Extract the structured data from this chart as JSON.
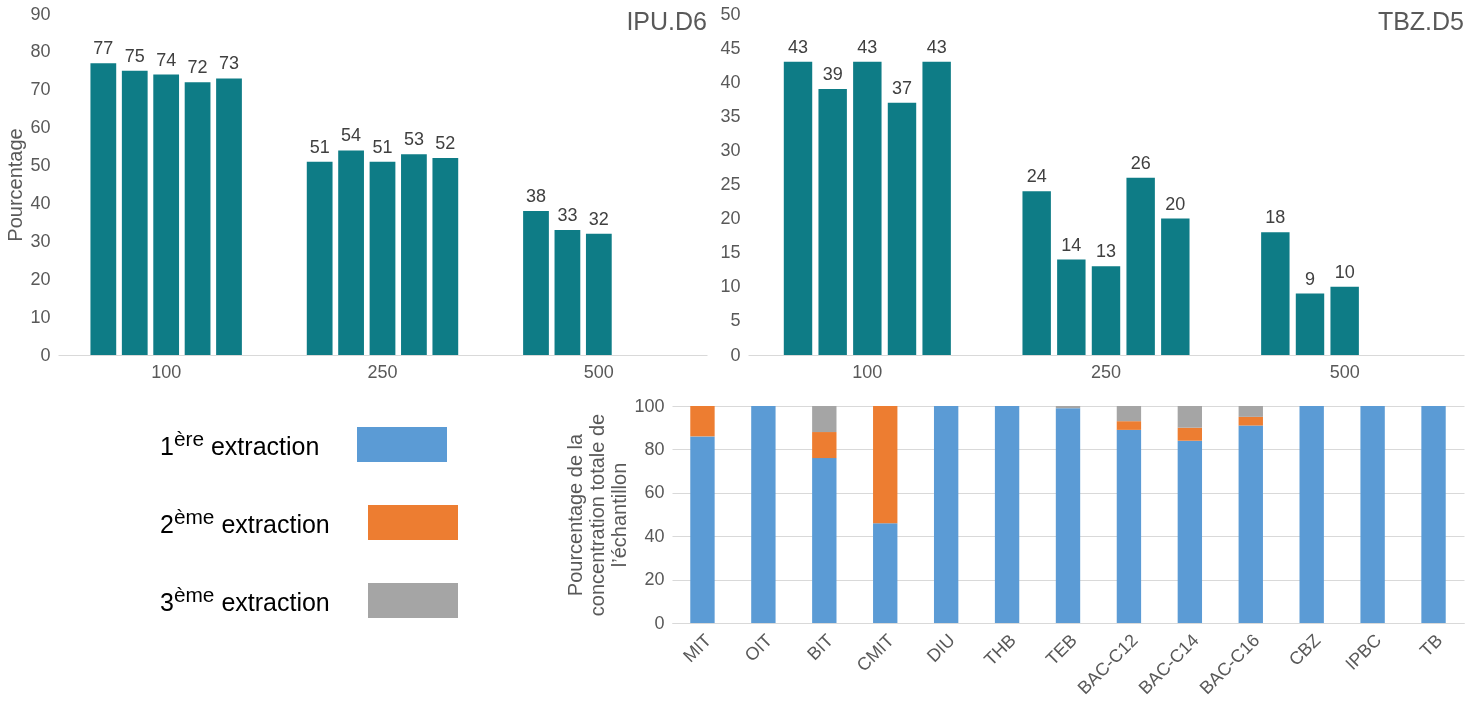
{
  "chart_data": [
    {
      "type": "bar",
      "title": "IPU.D6",
      "ylabel": "Pourcentage",
      "categories": [
        "100",
        "250",
        "500"
      ],
      "series": [
        {
          "color": "#0e7c86",
          "values": [
            77,
            51,
            38
          ]
        },
        {
          "color": "#0e7c86",
          "values": [
            75,
            54,
            33
          ]
        },
        {
          "color": "#0e7c86",
          "values": [
            74,
            51,
            32
          ]
        },
        {
          "color": "#0e7c86",
          "values": [
            72,
            53,
            null
          ]
        },
        {
          "color": "#0e7c86",
          "values": [
            73,
            52,
            null
          ]
        }
      ],
      "ylim": [
        0,
        90
      ],
      "yticks": [
        0,
        10,
        20,
        30,
        40,
        50,
        60,
        70,
        80,
        90
      ],
      "data_labels": true
    },
    {
      "type": "bar",
      "title": "TBZ.D5",
      "categories": [
        "100",
        "250",
        "500"
      ],
      "series": [
        {
          "color": "#0e7c86",
          "values": [
            43,
            24,
            18
          ]
        },
        {
          "color": "#0e7c86",
          "values": [
            39,
            14,
            9
          ]
        },
        {
          "color": "#0e7c86",
          "values": [
            43,
            13,
            10
          ]
        },
        {
          "color": "#0e7c86",
          "values": [
            37,
            26,
            null
          ]
        },
        {
          "color": "#0e7c86",
          "values": [
            43,
            20,
            null
          ]
        }
      ],
      "ylim": [
        0,
        50
      ],
      "yticks": [
        0,
        5,
        10,
        15,
        20,
        25,
        30,
        35,
        40,
        45,
        50
      ],
      "data_labels": true
    },
    {
      "type": "bar",
      "stacked": true,
      "ylabel": "Pourcentage de la concentration totale de l’échantillon",
      "categories": [
        "MIT",
        "OIT",
        "BIT",
        "CMIT",
        "DIU",
        "THB",
        "TEB",
        "BAC-C12",
        "BAC-C14",
        "BAC-C16",
        "CBZ",
        "IPBC",
        "TB"
      ],
      "series": [
        {
          "name": "1$^{ère}$ extraction",
          "color": "#5b9bd5",
          "values": [
            86,
            100,
            76,
            46,
            100,
            100,
            99,
            89,
            84,
            91,
            100,
            100,
            100
          ]
        },
        {
          "name": "2$^{ème}$ extraction",
          "color": "#ed7d31",
          "values": [
            14,
            0,
            12,
            54,
            0,
            0,
            0,
            4,
            6,
            4,
            0,
            0,
            0
          ]
        },
        {
          "name": "3$^{ème}$ extraction",
          "color": "#a5a5a5",
          "values": [
            0,
            0,
            12,
            0,
            0,
            0,
            1,
            7,
            10,
            5,
            0,
            0,
            0
          ]
        }
      ],
      "ylim": [
        0,
        100
      ],
      "yticks": [
        0,
        20,
        40,
        60,
        80,
        100
      ],
      "grid": "y",
      "legend": "left"
    }
  ]
}
